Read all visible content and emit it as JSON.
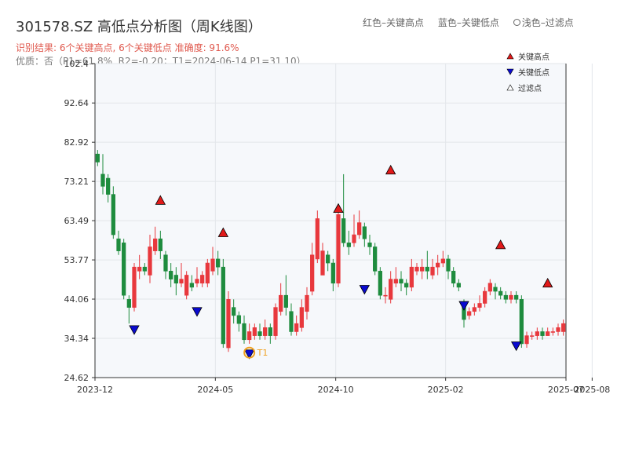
{
  "header": {
    "title": "301578.SZ 高低点分析图（周K线图）",
    "legend_high": "红色–关键高点",
    "legend_low": "蓝色–关键低点",
    "legend_filtered": "浅色–过滤点",
    "result_text": "识别结果: 6个关键高点, 6个关键低点  准确度: 91.6%",
    "quality_text": "优质：否（P1=61.8%, R2=-0.20；T1=2024-06-14 P1=31.10）"
  },
  "colors": {
    "up": "#e8383d",
    "down": "#1e8c3e",
    "high_marker": "#e11919",
    "low_marker": "#0a0ad0",
    "t1": "#f0a020",
    "plot_bg": "#f6f8fb"
  },
  "chart_data": {
    "type": "candlestick",
    "title": "301578.SZ 高低点分析图（周K线图）",
    "ylim": [
      24.62,
      102.4
    ],
    "yticks": [
      "24.62",
      "34.34",
      "44.06",
      "53.77",
      "63.49",
      "73.21",
      "82.92",
      "92.64",
      "102.4"
    ],
    "ytick_values": [
      24.62,
      34.34,
      44.06,
      53.77,
      63.49,
      73.21,
      82.92,
      92.64,
      102.4
    ],
    "xticks": [
      "2023-12",
      "2024-05",
      "2024-10",
      "2025-02",
      "2025-07",
      "2025-08"
    ],
    "xtick_index": [
      -0.5,
      22.5,
      45.5,
      66.5,
      89.5,
      94.5
    ],
    "candles": [
      [
        80,
        78,
        81,
        77
      ],
      [
        75,
        72,
        80,
        70
      ],
      [
        74,
        70,
        75,
        68
      ],
      [
        70,
        60,
        72,
        59
      ],
      [
        59,
        56,
        61,
        55
      ],
      [
        58,
        45,
        59,
        44
      ],
      [
        44,
        42,
        45,
        38
      ],
      [
        42,
        52,
        53,
        41
      ],
      [
        51,
        52,
        55,
        49
      ],
      [
        52,
        51,
        53,
        50
      ],
      [
        50,
        57,
        60,
        48
      ],
      [
        56,
        59,
        62,
        55
      ],
      [
        59,
        56,
        61,
        54
      ],
      [
        55,
        51,
        56,
        49
      ],
      [
        51,
        49,
        53,
        47
      ],
      [
        50,
        48,
        52,
        45
      ],
      [
        48,
        49,
        53,
        47
      ],
      [
        45,
        50,
        51,
        44
      ],
      [
        48,
        47,
        50,
        46
      ],
      [
        48,
        49,
        52,
        47
      ],
      [
        48,
        50,
        51,
        47
      ],
      [
        48,
        53,
        54,
        47
      ],
      [
        51,
        54,
        57,
        50
      ],
      [
        54,
        52,
        56,
        50
      ],
      [
        52,
        33,
        54,
        32
      ],
      [
        32,
        44,
        46,
        31
      ],
      [
        42,
        40,
        44,
        38
      ],
      [
        40,
        38,
        41,
        36
      ],
      [
        38,
        34,
        40,
        33
      ],
      [
        34,
        36,
        38,
        33
      ],
      [
        35,
        37,
        38,
        34
      ],
      [
        36,
        35,
        38,
        34
      ],
      [
        35,
        37,
        39,
        34
      ],
      [
        37,
        35,
        38,
        33
      ],
      [
        35,
        42,
        43,
        34
      ],
      [
        41,
        45,
        48,
        40
      ],
      [
        45,
        42,
        50,
        40
      ],
      [
        41,
        36,
        43,
        35
      ],
      [
        36,
        38,
        40,
        35
      ],
      [
        37,
        42,
        44,
        36
      ],
      [
        41,
        45,
        47,
        39
      ],
      [
        46,
        55,
        58,
        45
      ],
      [
        54,
        64,
        66,
        53
      ],
      [
        50,
        56,
        58,
        50
      ],
      [
        55,
        53,
        56,
        51
      ],
      [
        53,
        48,
        54,
        46
      ],
      [
        48,
        65,
        67,
        47
      ],
      [
        64,
        58,
        75,
        57
      ],
      [
        58,
        57,
        61,
        55
      ],
      [
        58,
        60,
        65,
        57
      ],
      [
        60,
        63,
        66,
        59
      ],
      [
        62,
        59,
        63,
        57
      ],
      [
        58,
        57,
        60,
        55
      ],
      [
        57,
        51,
        58,
        50
      ],
      [
        51,
        45,
        52,
        44
      ],
      [
        45,
        45,
        47,
        43
      ],
      [
        44,
        49,
        51,
        43
      ],
      [
        48,
        49,
        52,
        47
      ],
      [
        49,
        48,
        51,
        46
      ],
      [
        48,
        47,
        49,
        45
      ],
      [
        47,
        52,
        54,
        46
      ],
      [
        51,
        52,
        53,
        50
      ],
      [
        51,
        52,
        54,
        49
      ],
      [
        52,
        51,
        56,
        49
      ],
      [
        50,
        52,
        54,
        49
      ],
      [
        52,
        53,
        55,
        50
      ],
      [
        53,
        54,
        56,
        52
      ],
      [
        54,
        51,
        55,
        49
      ],
      [
        51,
        48,
        52,
        47
      ],
      [
        48,
        47,
        49,
        46
      ],
      [
        43,
        39,
        44,
        37
      ],
      [
        40,
        41,
        42,
        39
      ],
      [
        41,
        42,
        43,
        40
      ],
      [
        42,
        43,
        45,
        41
      ],
      [
        43,
        46,
        47,
        42
      ],
      [
        46,
        48,
        49,
        45
      ],
      [
        47,
        46,
        48,
        44
      ],
      [
        46,
        45,
        47,
        44
      ],
      [
        45,
        44,
        46,
        43
      ],
      [
        44,
        45,
        46,
        43
      ],
      [
        45,
        44,
        46,
        43
      ],
      [
        44,
        33,
        45,
        32
      ],
      [
        33,
        35,
        36,
        32
      ],
      [
        35,
        35,
        36,
        34
      ],
      [
        35,
        36,
        37,
        34
      ],
      [
        36,
        35,
        37,
        34
      ],
      [
        35,
        36,
        37,
        35
      ],
      [
        36,
        36,
        37,
        35
      ],
      [
        36,
        37,
        38,
        35
      ],
      [
        36,
        38,
        39,
        35
      ]
    ],
    "key_highs": [
      [
        12,
        68.5
      ],
      [
        24,
        60.5
      ],
      [
        46,
        66.5
      ],
      [
        56,
        76
      ],
      [
        77,
        57.5
      ],
      [
        86,
        48
      ]
    ],
    "key_lows": [
      [
        7,
        36.5
      ],
      [
        19,
        41
      ],
      [
        29,
        30.5
      ],
      [
        51,
        46.5
      ],
      [
        70,
        42.5
      ],
      [
        80,
        32.5
      ]
    ],
    "t1": {
      "index": 29,
      "price": 30.8,
      "label": "T1"
    },
    "legend": [
      "关键高点",
      "关键低点",
      "过滤点"
    ]
  }
}
